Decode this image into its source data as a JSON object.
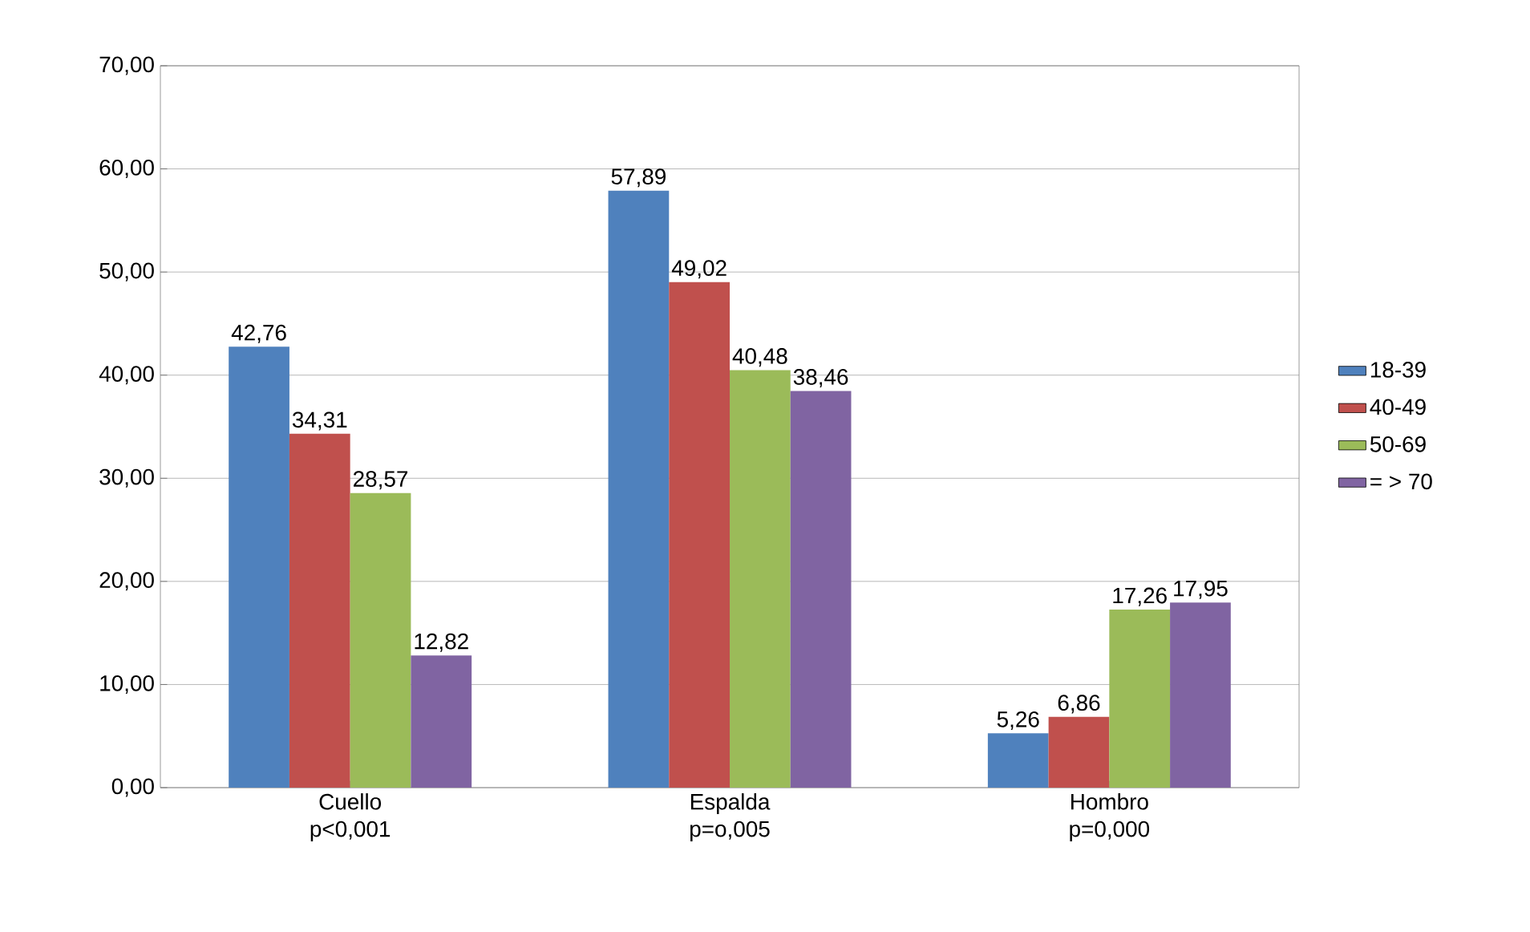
{
  "chart_data": {
    "type": "bar",
    "categories": [
      "Cuello p<0,001",
      "Espalda p=o,005",
      "Hombro p=0,000"
    ],
    "series": [
      {
        "name": "18-39",
        "color": "#4f81bd",
        "values": [
          42.76,
          57.89,
          5.26
        ],
        "value_labels": [
          "42,76",
          "57,89",
          "5,26"
        ]
      },
      {
        "name": "40-49",
        "color": "#c0504d",
        "values": [
          34.31,
          49.02,
          6.86
        ],
        "value_labels": [
          "34,31",
          "49,02",
          "6,86"
        ]
      },
      {
        "name": "50-69",
        "color": "#9bbb59",
        "values": [
          28.57,
          40.48,
          17.26
        ],
        "value_labels": [
          "28,57",
          "40,48",
          "17,26"
        ]
      },
      {
        "name": "= > 70",
        "color": "#8064a2",
        "values": [
          12.82,
          38.46,
          17.95
        ],
        "value_labels": [
          "12,82",
          "38,46",
          "17,95"
        ]
      }
    ],
    "ylim": [
      0,
      70
    ],
    "yticks": [
      {
        "value": 0,
        "label": "0,00"
      },
      {
        "value": 10,
        "label": "10,00"
      },
      {
        "value": 20,
        "label": "20,00"
      },
      {
        "value": 30,
        "label": "30,00"
      },
      {
        "value": 40,
        "label": "40,00"
      },
      {
        "value": 50,
        "label": "50,00"
      },
      {
        "value": 60,
        "label": "60,00"
      },
      {
        "value": 70,
        "label": "70,00"
      }
    ],
    "grid": "y",
    "legend": "right"
  }
}
